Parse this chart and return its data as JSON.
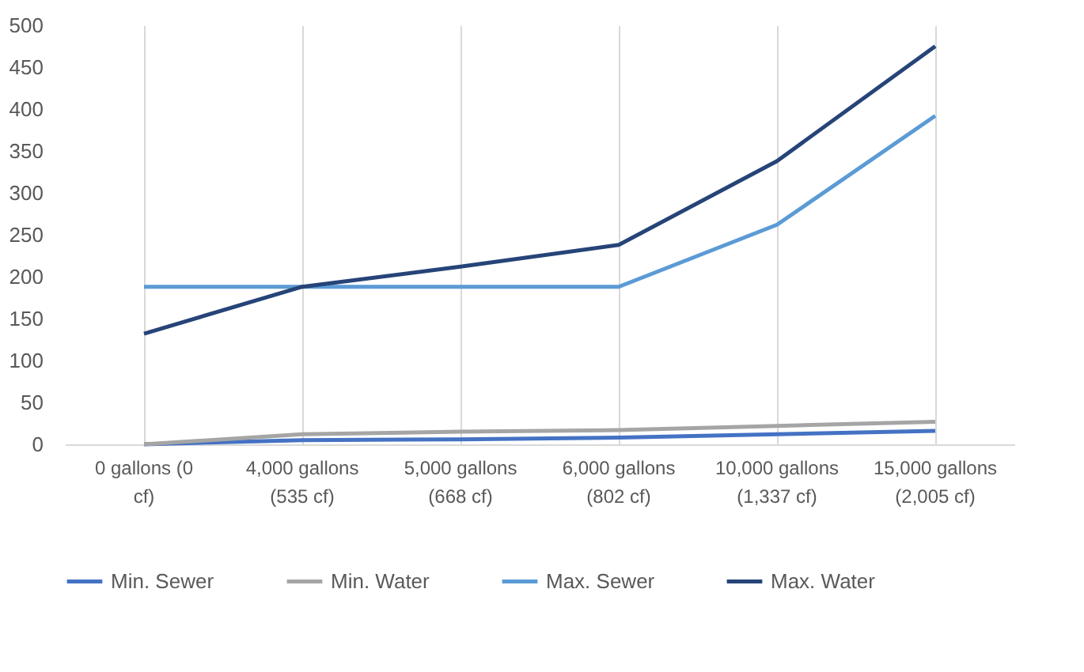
{
  "chart_data": {
    "type": "line",
    "categories": [
      "0 gallons (0 cf)",
      "4,000 gallons (535 cf)",
      "5,000 gallons (668 cf)",
      "6,000 gallons (802 cf)",
      "10,000 gallons (1,337 cf)",
      "15,000 gallons (2,005 cf)"
    ],
    "series": [
      {
        "name": "Min. Sewer",
        "color": "#4472c4",
        "values": [
          0,
          5,
          6,
          8,
          12,
          16
        ]
      },
      {
        "name": "Min. Water",
        "color": "#a5a5a5",
        "values": [
          0,
          12,
          15,
          17,
          22,
          27
        ]
      },
      {
        "name": "Max. Sewer",
        "color": "#5b9bd5",
        "values": [
          188,
          188,
          188,
          188,
          262,
          392
        ]
      },
      {
        "name": "Max. Water",
        "color": "#264478",
        "values": [
          132,
          188,
          212,
          238,
          338,
          475
        ]
      }
    ],
    "ylim": [
      0,
      500
    ],
    "yticks": [
      0,
      50,
      100,
      150,
      200,
      250,
      300,
      350,
      400,
      450,
      500
    ],
    "grid": "x",
    "legend": "bottom",
    "marker": "none",
    "line_style": "solid"
  }
}
